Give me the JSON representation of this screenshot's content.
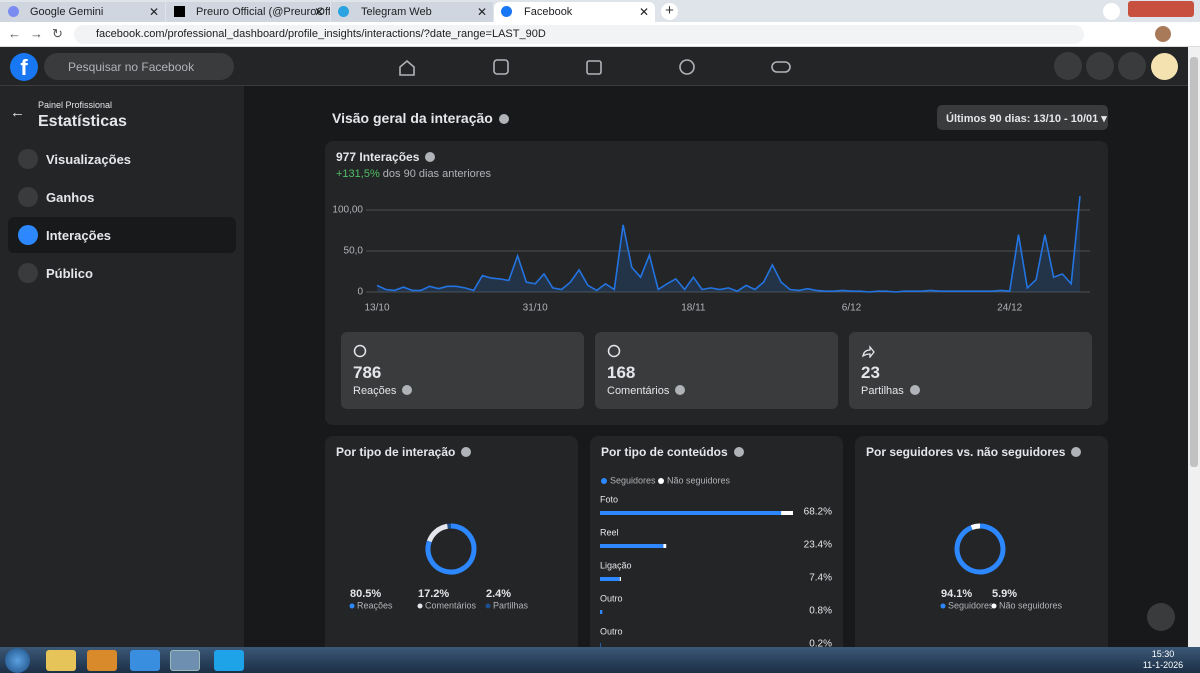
{
  "browser": {
    "tabs": [
      "Google Gemini",
      "Preuro Official (@PreuroOfficial)",
      "Telegram Web",
      "Facebook"
    ],
    "url": "facebook.com/professional_dashboard/profile_insights/interactions/?date_range=LAST_90D"
  },
  "header": {
    "search_placeholder": "Pesquisar no Facebook"
  },
  "sidebar": {
    "subtitle": "Painel Profissional",
    "title": "Estatísticas",
    "items": [
      "Visualizações",
      "Ganhos",
      "Interações",
      "Público"
    ]
  },
  "overview": {
    "title": "Visão geral da interação",
    "date_range": "Últimos 90 dias: 13/10 - 10/01"
  },
  "summary_cards": [
    {
      "value": 786,
      "label": "Reações"
    },
    {
      "value": 168,
      "label": "Comentários"
    },
    {
      "value": 23,
      "label": "Partilhas"
    }
  ],
  "chart_data": [
    {
      "type": "line",
      "title": "977 Interações",
      "change": "+131,5%",
      "change_note": "dos 90 dias anteriores",
      "color": "#2374e1",
      "area": true,
      "grid": true,
      "categories": [
        "13/10",
        null,
        null,
        null,
        null,
        null,
        null,
        null,
        null,
        null,
        null,
        null,
        null,
        null,
        null,
        null,
        null,
        null,
        "31/10",
        null,
        null,
        null,
        null,
        null,
        null,
        null,
        null,
        null,
        null,
        null,
        null,
        null,
        null,
        null,
        null,
        null,
        "18/11",
        null,
        null,
        null,
        null,
        null,
        null,
        null,
        null,
        null,
        null,
        null,
        null,
        null,
        null,
        null,
        null,
        null,
        "6/12",
        null,
        null,
        null,
        null,
        null,
        null,
        null,
        null,
        null,
        null,
        null,
        null,
        null,
        null,
        null,
        null,
        null,
        "24/12",
        null,
        null,
        null,
        null,
        null,
        null,
        null,
        null
      ],
      "values": [
        8,
        3,
        2,
        6,
        2,
        2,
        7,
        4,
        7,
        7,
        5,
        2,
        20,
        17,
        16,
        14,
        44,
        12,
        10,
        22,
        5,
        3,
        12,
        27,
        8,
        2,
        10,
        3,
        82,
        30,
        18,
        45,
        3,
        10,
        16,
        3,
        18,
        3,
        5,
        3,
        5,
        1,
        8,
        3,
        12,
        33,
        12,
        3,
        2,
        4,
        2,
        1,
        1,
        2,
        1,
        1,
        0,
        1,
        1,
        0,
        1,
        1,
        1,
        2,
        1,
        1,
        1,
        1,
        1,
        1,
        1,
        2,
        1,
        70,
        5,
        15,
        70,
        18,
        22,
        10,
        117
      ],
      "ylim": [
        0,
        120
      ],
      "yticks": [
        0,
        {
          "value": 50,
          "label": "50,0"
        },
        {
          "value": 100,
          "label": "100,00"
        }
      ]
    },
    {
      "type": "pie",
      "donut": true,
      "title": "Por tipo de interação",
      "categories": [
        "Reações",
        "Comentários",
        "Partilhas"
      ],
      "values": [
        80.5,
        17.2,
        2.4
      ],
      "value_labels": [
        "80.5%",
        "17.2%",
        "2.4%"
      ],
      "colors": [
        "#2d88ff",
        "#e4e6eb",
        "#1d4f91"
      ]
    },
    {
      "type": "bar",
      "orientation": "horizontal",
      "stacked": true,
      "title": "Por tipo de conteúdos",
      "categories": [
        "Foto",
        "Reel",
        "Ligação",
        "Outro",
        "Outro"
      ],
      "series": [
        {
          "name": "Seguidores",
          "color": "#2d88ff",
          "values": [
            64.0,
            22.4,
            7.0,
            0.8,
            0.2
          ]
        },
        {
          "name": "Não seguidores",
          "color": "#ffffff",
          "values": [
            4.2,
            1.0,
            0.4,
            0,
            0
          ]
        }
      ],
      "totals": [
        68.2,
        23.4,
        7.4,
        0.8,
        0.2
      ],
      "value_labels": [
        "68.2%",
        "23.4%",
        "7.4%",
        "0.8%",
        "0.2%"
      ]
    },
    {
      "type": "pie",
      "donut": true,
      "title": "Por seguidores vs. não seguidores",
      "categories": [
        "Seguidores",
        "Não seguidores"
      ],
      "values": [
        94.1,
        5.9
      ],
      "value_labels": [
        "94.1%",
        "5.9%"
      ],
      "colors": [
        "#2d88ff",
        "#ffffff"
      ]
    }
  ],
  "taskbar": {
    "time": "15:30",
    "date": "11-1-2026"
  }
}
